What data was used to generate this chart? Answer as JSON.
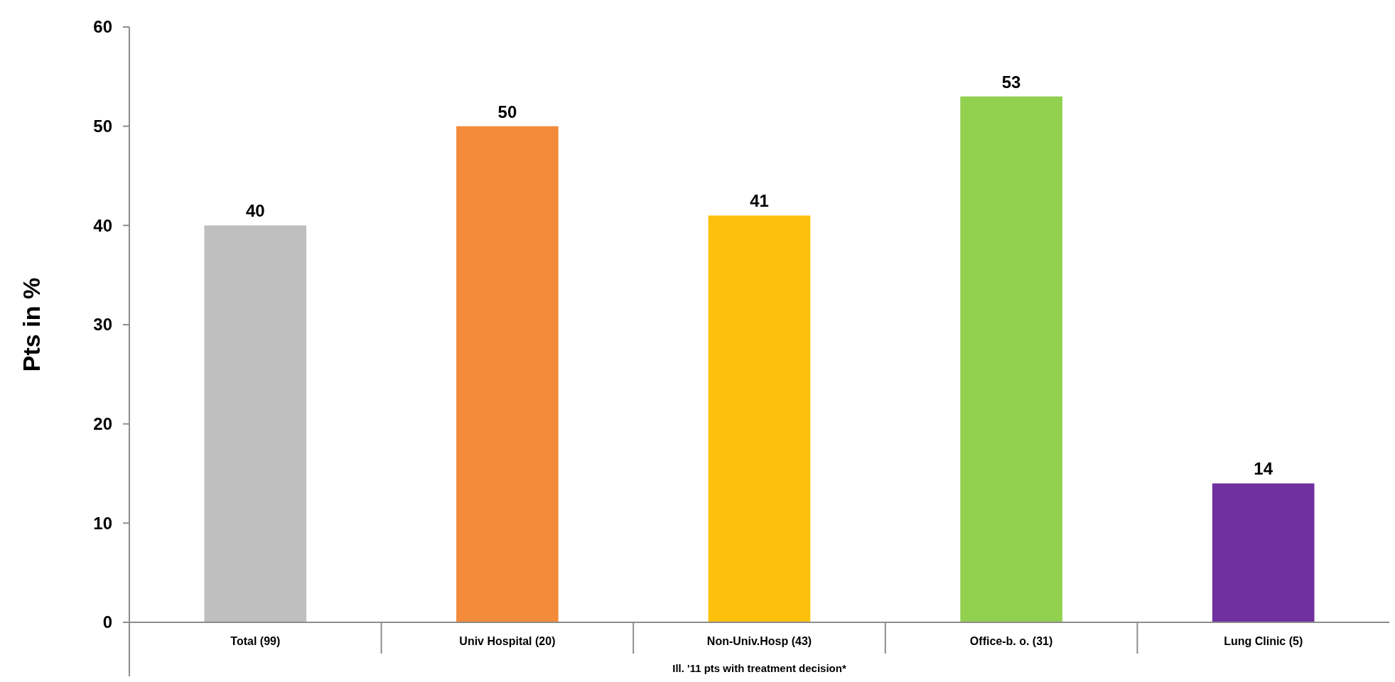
{
  "chart_data": {
    "type": "bar",
    "xlabel": "Ill. '11 pts with treatment decision*",
    "ylabel": "Pts in %",
    "categories": [
      "Total (99)",
      "Univ Hospital (20)",
      "Non-Univ.Hosp (43)",
      "Office-b. o. (31)",
      "Lung Clinic (5)"
    ],
    "values": [
      40,
      50,
      41,
      53,
      14
    ],
    "colors": [
      "#bfbfbf",
      "#f38b3b",
      "#fdc00b",
      "#92d050",
      "#7030a0"
    ],
    "ylim": [
      0,
      60
    ],
    "yticks": [
      0,
      10,
      20,
      30,
      40,
      50,
      60
    ],
    "data_labels": true,
    "grid": false
  }
}
